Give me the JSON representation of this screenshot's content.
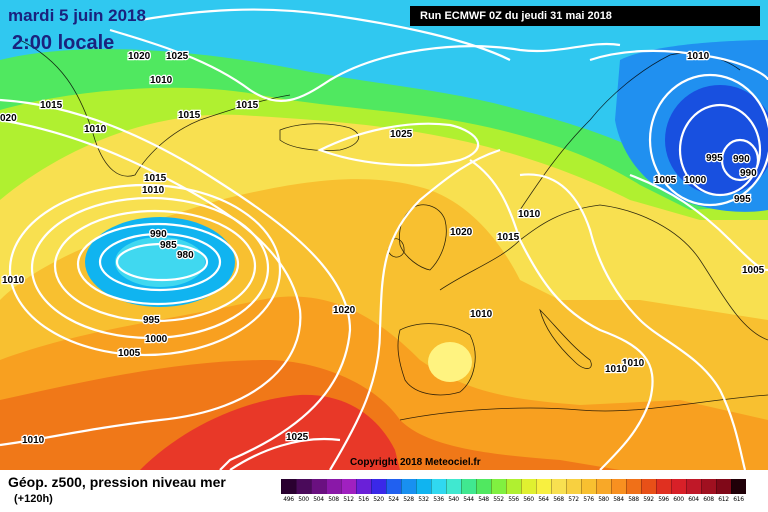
{
  "header": {
    "date": "mardi 5 juin 2018",
    "time": "2:00 locale",
    "run": "Run ECMWF 0Z du jeudi 31 mai 2018"
  },
  "copyright": "Copyright 2018 Meteociel.fr",
  "legend": {
    "title": "Géop. z500, pression niveau mer",
    "subtitle": "(+120h)",
    "ticks": [
      "496",
      "500",
      "504",
      "508",
      "512",
      "516",
      "520",
      "524",
      "528",
      "532",
      "536",
      "540",
      "544",
      "548",
      "552",
      "556",
      "560",
      "564",
      "568",
      "572",
      "576",
      "580",
      "584",
      "588",
      "592",
      "596",
      "600",
      "604",
      "608",
      "612",
      "616"
    ],
    "colors": [
      "#2a0030",
      "#4a0a5a",
      "#6a1080",
      "#8a18a8",
      "#a020c0",
      "#6a20d8",
      "#3a28e8",
      "#2060f0",
      "#1890f0",
      "#10b4f0",
      "#30d8f0",
      "#40e8d0",
      "#40e890",
      "#50e860",
      "#80f040",
      "#b0f030",
      "#e0f030",
      "#f8f040",
      "#f8e050",
      "#f8d040",
      "#f8c030",
      "#f8a828",
      "#f89020",
      "#f07018",
      "#e85018",
      "#e03020",
      "#d82028",
      "#c01828",
      "#a01020",
      "#800818",
      "#200008"
    ]
  },
  "map": {
    "colors": {
      "ocean_north": "#30c8f0",
      "ocean_mid": "#10b4f0",
      "low_center": "#40d8f0",
      "green_band": "#50e860",
      "lime": "#b0f030",
      "yellow": "#f8e050",
      "yellow_light": "#fff380",
      "orange_light": "#f8c030",
      "orange": "#f8a020",
      "orange_deep": "#f07818",
      "red": "#e83828",
      "scandi_deep": "#1850e0",
      "scandi_blue": "#2090f0"
    },
    "isobar_labels": [
      {
        "id": "a",
        "text": "1020"
      },
      {
        "id": "b",
        "text": "1025"
      },
      {
        "id": "c",
        "text": "1010"
      },
      {
        "id": "d",
        "text": "1015"
      },
      {
        "id": "e",
        "text": "1015"
      },
      {
        "id": "f",
        "text": "1025"
      },
      {
        "id": "g",
        "text": "1010"
      },
      {
        "id": "h",
        "text": "1015"
      },
      {
        "id": "i",
        "text": "1010"
      },
      {
        "id": "j",
        "text": "1015"
      },
      {
        "id": "k",
        "text": "990"
      },
      {
        "id": "l",
        "text": "985"
      },
      {
        "id": "m",
        "text": "980"
      },
      {
        "id": "n",
        "text": "995"
      },
      {
        "id": "o",
        "text": "1000"
      },
      {
        "id": "p",
        "text": "1005"
      },
      {
        "id": "q",
        "text": "1020"
      },
      {
        "id": "r",
        "text": "1010"
      },
      {
        "id": "s",
        "text": "1025"
      },
      {
        "id": "t",
        "text": "1010"
      },
      {
        "id": "u",
        "text": "1015"
      },
      {
        "id": "v",
        "text": "1020"
      },
      {
        "id": "w",
        "text": "1010"
      },
      {
        "id": "x",
        "text": "1010"
      },
      {
        "id": "y",
        "text": "1010"
      },
      {
        "id": "z",
        "text": "1005"
      },
      {
        "id": "aa",
        "text": "1000"
      },
      {
        "id": "ab",
        "text": "995"
      },
      {
        "id": "ac",
        "text": "990"
      },
      {
        "id": "ad",
        "text": "990"
      },
      {
        "id": "ae",
        "text": "995"
      },
      {
        "id": "af",
        "text": "1005"
      },
      {
        "id": "ag",
        "text": "1010"
      },
      {
        "id": "ah",
        "text": "1010"
      },
      {
        "id": "ai",
        "text": "020"
      }
    ]
  }
}
